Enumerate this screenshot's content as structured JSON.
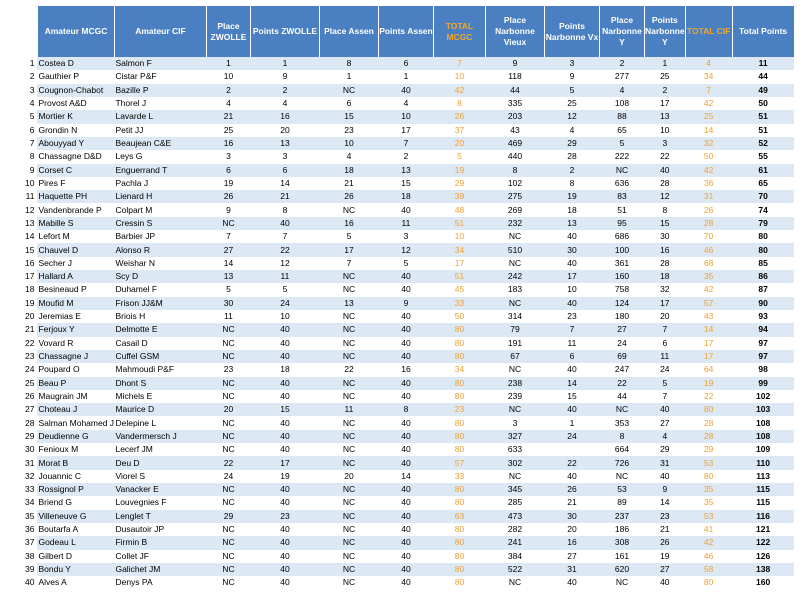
{
  "headers": [
    "",
    "Amateur MCGC",
    "Amateur CIF",
    "Place ZWOLLE",
    "Points ZWOLLE",
    "Place Assen",
    "Points Assen",
    "TOTAL MCGC",
    "Place Narbonne Vieux",
    "Points Narbonne Vx",
    "Place Narbonne Y",
    "Points Narbonne Y",
    "TOTAL CIF",
    "Total Points"
  ],
  "rows": [
    [
      "1",
      "Costea D",
      "Salmon F",
      "1",
      "1",
      "8",
      "6",
      "7",
      "9",
      "3",
      "2",
      "1",
      "4",
      "11"
    ],
    [
      "2",
      "Gauthier P",
      "Cistar P&F",
      "10",
      "9",
      "1",
      "1",
      "10",
      "118",
      "9",
      "277",
      "25",
      "34",
      "44"
    ],
    [
      "3",
      "Cougnon-Chabot",
      "Bazille P",
      "2",
      "2",
      "NC",
      "40",
      "42",
      "44",
      "5",
      "4",
      "2",
      "7",
      "49"
    ],
    [
      "4",
      "Provost A&D",
      "Thorel J",
      "4",
      "4",
      "6",
      "4",
      "8",
      "335",
      "25",
      "108",
      "17",
      "42",
      "50"
    ],
    [
      "5",
      "Mortier K",
      "Lavarde L",
      "21",
      "16",
      "15",
      "10",
      "26",
      "203",
      "12",
      "88",
      "13",
      "25",
      "51"
    ],
    [
      "6",
      "Grondin N",
      "Petit JJ",
      "25",
      "20",
      "23",
      "17",
      "37",
      "43",
      "4",
      "65",
      "10",
      "14",
      "51"
    ],
    [
      "7",
      "Abouyyad Y",
      "Beaujean C&E",
      "16",
      "13",
      "10",
      "7",
      "20",
      "469",
      "29",
      "5",
      "3",
      "32",
      "52"
    ],
    [
      "8",
      "Chassagne D&D",
      "Leys G",
      "3",
      "3",
      "4",
      "2",
      "5",
      "440",
      "28",
      "222",
      "22",
      "50",
      "55"
    ],
    [
      "9",
      "Corset C",
      "Enguerrand T",
      "6",
      "6",
      "18",
      "13",
      "19",
      "8",
      "2",
      "NC",
      "40",
      "42",
      "61"
    ],
    [
      "10",
      "Pires F",
      "Pachla J",
      "19",
      "14",
      "21",
      "15",
      "29",
      "102",
      "8",
      "636",
      "28",
      "36",
      "65"
    ],
    [
      "11",
      "Haquette PH",
      "Lienard H",
      "26",
      "21",
      "26",
      "18",
      "39",
      "275",
      "19",
      "83",
      "12",
      "31",
      "70"
    ],
    [
      "12",
      "Vandenbrande P",
      "Colpart M",
      "9",
      "8",
      "NC",
      "40",
      "48",
      "269",
      "18",
      "51",
      "8",
      "26",
      "74"
    ],
    [
      "13",
      "Mabille S",
      "Cressin S",
      "NC",
      "40",
      "16",
      "11",
      "51",
      "232",
      "13",
      "95",
      "15",
      "28",
      "79"
    ],
    [
      "14",
      "Lefort M",
      "Barbier JP",
      "7",
      "7",
      "5",
      "3",
      "10",
      "NC",
      "40",
      "686",
      "30",
      "70",
      "80"
    ],
    [
      "15",
      "Chauvel D",
      "Alonso R",
      "27",
      "22",
      "17",
      "12",
      "34",
      "510",
      "30",
      "100",
      "16",
      "46",
      "80"
    ],
    [
      "16",
      "Secher J",
      "Weishar N",
      "14",
      "12",
      "7",
      "5",
      "17",
      "NC",
      "40",
      "361",
      "28",
      "68",
      "85"
    ],
    [
      "17",
      "Hallard A",
      "Scy D",
      "13",
      "11",
      "NC",
      "40",
      "51",
      "242",
      "17",
      "160",
      "18",
      "35",
      "86"
    ],
    [
      "18",
      "Besineaud P",
      "Duhamel F",
      "5",
      "5",
      "NC",
      "40",
      "45",
      "183",
      "10",
      "758",
      "32",
      "42",
      "87"
    ],
    [
      "19",
      "Moufid M",
      "Frison JJ&M",
      "30",
      "24",
      "13",
      "9",
      "33",
      "NC",
      "40",
      "124",
      "17",
      "57",
      "90"
    ],
    [
      "20",
      "Jeremias E",
      "Briois H",
      "11",
      "10",
      "NC",
      "40",
      "50",
      "314",
      "23",
      "180",
      "20",
      "43",
      "93"
    ],
    [
      "21",
      "Ferjoux Y",
      "Delmotte E",
      "NC",
      "40",
      "NC",
      "40",
      "80",
      "79",
      "7",
      "27",
      "7",
      "14",
      "94"
    ],
    [
      "22",
      "Vovard R",
      "Casail D",
      "NC",
      "40",
      "NC",
      "40",
      "80",
      "191",
      "11",
      "24",
      "6",
      "17",
      "97"
    ],
    [
      "23",
      "Chassagne J",
      "Cuffel GSM",
      "NC",
      "40",
      "NC",
      "40",
      "80",
      "67",
      "6",
      "69",
      "11",
      "17",
      "97"
    ],
    [
      "24",
      "Poupard O",
      "Mahmoudi P&F",
      "23",
      "18",
      "22",
      "16",
      "34",
      "NC",
      "40",
      "247",
      "24",
      "64",
      "98"
    ],
    [
      "25",
      "Beau P",
      "Dhont S",
      "NC",
      "40",
      "NC",
      "40",
      "80",
      "238",
      "14",
      "22",
      "5",
      "19",
      "99"
    ],
    [
      "26",
      "Maugrain JM",
      "Michels E",
      "NC",
      "40",
      "NC",
      "40",
      "80",
      "239",
      "15",
      "44",
      "7",
      "22",
      "102"
    ],
    [
      "27",
      "Choteau J",
      "Maurice D",
      "20",
      "15",
      "11",
      "8",
      "23",
      "NC",
      "40",
      "NC",
      "40",
      "80",
      "103"
    ],
    [
      "28",
      "Salman Mohamed J",
      "Delepine L",
      "NC",
      "40",
      "NC",
      "40",
      "80",
      "3",
      "1",
      "353",
      "27",
      "28",
      "108"
    ],
    [
      "29",
      "Deudienne G",
      "Vandermersch J",
      "NC",
      "40",
      "NC",
      "40",
      "80",
      "327",
      "24",
      "8",
      "4",
      "28",
      "108"
    ],
    [
      "30",
      "Fenioux M",
      "Lecerf JM",
      "NC",
      "40",
      "NC",
      "40",
      "80",
      "633",
      "",
      "664",
      "29",
      "29",
      "109"
    ],
    [
      "31",
      "Morat B",
      "Deu D",
      "22",
      "17",
      "NC",
      "40",
      "57",
      "302",
      "22",
      "726",
      "31",
      "53",
      "110"
    ],
    [
      "32",
      "Jouannic C",
      "Viorel S",
      "24",
      "19",
      "20",
      "14",
      "33",
      "NC",
      "40",
      "NC",
      "40",
      "80",
      "113"
    ],
    [
      "33",
      "Rossignol P",
      "Vanacker E",
      "NC",
      "40",
      "NC",
      "40",
      "80",
      "345",
      "26",
      "53",
      "9",
      "35",
      "115"
    ],
    [
      "34",
      "Briend G",
      "Louvegnies F",
      "NC",
      "40",
      "NC",
      "40",
      "80",
      "285",
      "21",
      "89",
      "14",
      "35",
      "115"
    ],
    [
      "35",
      "Villeneuve G",
      "Lenglet T",
      "29",
      "23",
      "NC",
      "40",
      "63",
      "473",
      "30",
      "237",
      "23",
      "53",
      "116"
    ],
    [
      "36",
      "Boutarfa A",
      "Dusautoir JP",
      "NC",
      "40",
      "NC",
      "40",
      "80",
      "282",
      "20",
      "186",
      "21",
      "41",
      "121"
    ],
    [
      "37",
      "Godeau L",
      "Firmin B",
      "NC",
      "40",
      "NC",
      "40",
      "80",
      "241",
      "16",
      "308",
      "26",
      "42",
      "122"
    ],
    [
      "38",
      "Gilbert D",
      "Collet JF",
      "NC",
      "40",
      "NC",
      "40",
      "80",
      "384",
      "27",
      "161",
      "19",
      "46",
      "126"
    ],
    [
      "39",
      "Bondu Y",
      "Galichet JM",
      "NC",
      "40",
      "NC",
      "40",
      "80",
      "522",
      "31",
      "620",
      "27",
      "58",
      "138"
    ],
    [
      "40",
      "Alves A",
      "Denys PA",
      "NC",
      "40",
      "NC",
      "40",
      "80",
      "NC",
      "40",
      "NC",
      "40",
      "80",
      "160"
    ]
  ],
  "colors": {
    "header_bg": "#4a7fc1",
    "header_text": "#ffffff",
    "total_text": "#f5a623",
    "row_band": "#dce8f4"
  }
}
